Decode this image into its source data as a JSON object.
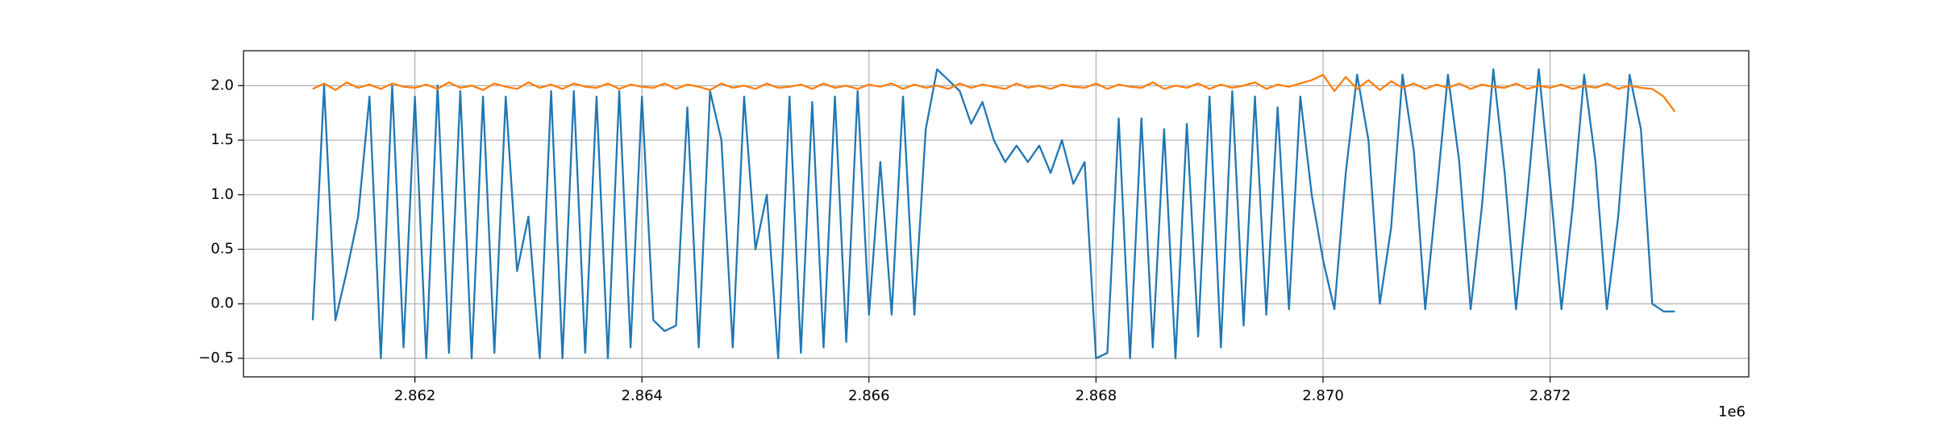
{
  "chart_data": {
    "type": "line",
    "x_offset_label": "1e6",
    "x": [
      2861100,
      2861200,
      2861300,
      2861400,
      2861500,
      2861600,
      2861700,
      2861800,
      2861900,
      2862000,
      2862100,
      2862200,
      2862300,
      2862400,
      2862500,
      2862600,
      2862700,
      2862800,
      2862900,
      2863000,
      2863100,
      2863200,
      2863300,
      2863400,
      2863500,
      2863600,
      2863700,
      2863800,
      2863900,
      2864000,
      2864100,
      2864200,
      2864300,
      2864400,
      2864500,
      2864600,
      2864700,
      2864800,
      2864900,
      2865000,
      2865100,
      2865200,
      2865300,
      2865400,
      2865500,
      2865600,
      2865700,
      2865800,
      2865900,
      2866000,
      2866100,
      2866200,
      2866300,
      2866400,
      2866500,
      2866600,
      2866700,
      2866800,
      2866900,
      2867000,
      2867100,
      2867200,
      2867300,
      2867400,
      2867500,
      2867600,
      2867700,
      2867800,
      2867900,
      2868000,
      2868100,
      2868200,
      2868300,
      2868400,
      2868500,
      2868600,
      2868700,
      2868800,
      2868900,
      2869000,
      2869100,
      2869200,
      2869300,
      2869400,
      2869500,
      2869600,
      2869700,
      2869800,
      2869900,
      2870000,
      2870100,
      2870200,
      2870300,
      2870400,
      2870500,
      2870600,
      2870700,
      2870800,
      2870900,
      2871000,
      2871100,
      2871200,
      2871300,
      2871400,
      2871500,
      2871600,
      2871700,
      2871800,
      2871900,
      2872000,
      2872100,
      2872200,
      2872300,
      2872400,
      2872500,
      2872600,
      2872700,
      2872800,
      2872900,
      2873000,
      2873100
    ],
    "series": [
      {
        "color": "#1f77b4",
        "values": [
          -0.15,
          2.0,
          -0.15,
          0.3,
          0.8,
          1.9,
          -0.5,
          2.0,
          -0.4,
          1.9,
          -0.5,
          2.0,
          -0.45,
          1.95,
          -0.5,
          1.9,
          -0.45,
          1.9,
          0.3,
          0.8,
          -0.5,
          1.95,
          -0.5,
          1.95,
          -0.45,
          1.9,
          -0.5,
          1.95,
          -0.4,
          1.9,
          -0.15,
          -0.25,
          -0.2,
          1.8,
          -0.4,
          1.95,
          1.5,
          -0.4,
          1.9,
          0.5,
          1.0,
          -0.5,
          1.9,
          -0.45,
          1.85,
          -0.4,
          1.9,
          -0.35,
          1.95,
          -0.1,
          1.3,
          -0.1,
          1.9,
          -0.1,
          1.6,
          2.15,
          2.05,
          1.95,
          1.65,
          1.85,
          1.5,
          1.3,
          1.45,
          1.3,
          1.45,
          1.2,
          1.5,
          1.1,
          1.3,
          -0.5,
          -0.45,
          1.7,
          -0.5,
          1.7,
          -0.4,
          1.6,
          -0.5,
          1.65,
          -0.3,
          1.9,
          -0.4,
          1.95,
          -0.2,
          1.9,
          -0.1,
          1.8,
          -0.05,
          1.9,
          1.0,
          0.4,
          -0.05,
          1.2,
          2.1,
          1.5,
          0.0,
          0.7,
          2.1,
          1.4,
          -0.05,
          1.0,
          2.1,
          1.3,
          -0.05,
          0.9,
          2.15,
          1.2,
          -0.05,
          1.0,
          2.15,
          1.1,
          -0.05,
          0.9,
          2.1,
          1.3,
          -0.05,
          0.8,
          2.1,
          1.6,
          0.0,
          -0.07,
          -0.07
        ]
      },
      {
        "color": "#ff7f0e",
        "values": [
          1.97,
          2.02,
          1.96,
          2.03,
          1.98,
          2.01,
          1.97,
          2.02,
          1.99,
          1.98,
          2.01,
          1.97,
          2.03,
          1.98,
          2.0,
          1.96,
          2.02,
          1.99,
          1.97,
          2.03,
          1.98,
          2.01,
          1.97,
          2.02,
          1.99,
          1.98,
          2.02,
          1.97,
          2.01,
          1.99,
          1.98,
          2.02,
          1.97,
          2.01,
          1.99,
          1.96,
          2.02,
          1.98,
          2.0,
          1.97,
          2.02,
          1.98,
          1.99,
          2.01,
          1.97,
          2.02,
          1.98,
          2.0,
          1.97,
          2.01,
          1.99,
          2.02,
          1.97,
          2.01,
          1.98,
          2.0,
          1.97,
          2.02,
          1.98,
          2.01,
          1.99,
          1.97,
          2.02,
          1.98,
          2.0,
          1.97,
          2.01,
          1.99,
          1.98,
          2.02,
          1.97,
          2.01,
          1.99,
          1.98,
          2.03,
          1.97,
          2.0,
          1.98,
          2.02,
          1.97,
          2.01,
          1.98,
          2.0,
          2.03,
          1.97,
          2.01,
          1.99,
          2.02,
          2.05,
          2.1,
          1.95,
          2.08,
          1.97,
          2.05,
          1.96,
          2.04,
          1.98,
          2.02,
          1.97,
          2.01,
          1.98,
          2.02,
          1.97,
          2.01,
          1.99,
          1.98,
          2.02,
          1.97,
          2.0,
          1.98,
          2.01,
          1.97,
          2.0,
          1.98,
          2.02,
          1.97,
          2.0,
          1.98,
          1.97,
          1.9,
          1.76
        ]
      }
    ],
    "xlim": [
      2860490,
      2873750
    ],
    "ylim": [
      -0.67,
      2.32
    ],
    "xticks": [
      {
        "value": 2862000,
        "label": "2.862"
      },
      {
        "value": 2864000,
        "label": "2.864"
      },
      {
        "value": 2866000,
        "label": "2.866"
      },
      {
        "value": 2868000,
        "label": "2.868"
      },
      {
        "value": 2870000,
        "label": "2.870"
      },
      {
        "value": 2872000,
        "label": "2.872"
      }
    ],
    "yticks": [
      {
        "value": -0.5,
        "label": "−0.5"
      },
      {
        "value": 0,
        "label": "0.0"
      },
      0.5,
      {
        "value": 1,
        "label": "1.0"
      },
      1.5,
      {
        "value": 2,
        "label": "2.0"
      }
    ],
    "grid": true
  }
}
